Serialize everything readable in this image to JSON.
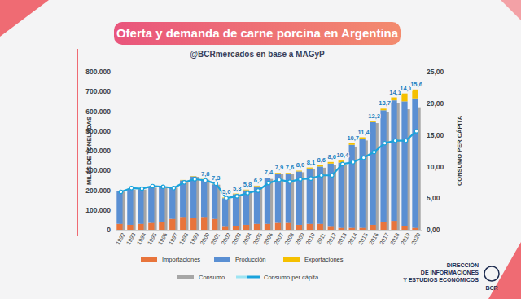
{
  "chart_data": {
    "type": "bar",
    "title": "Oferta y demanda de carne porcina en Argentina",
    "subtitle": "@BCRmercados en base a MAGyP",
    "y_label": "MILES DE TONELADAS",
    "y2_label": "CONSUMO PER CÁPITA",
    "annotations": [
      "DIRECCIÓN",
      "DE INFORMACIONES",
      "Y ESTUDIOS ECONÓMICOS",
      "BCR"
    ],
    "stacked": true,
    "grid": false,
    "legend": "bottom",
    "data_labels": true,
    "categories": [
      "1992",
      "1993",
      "1994",
      "1995",
      "1996",
      "1997",
      "1998",
      "1999",
      "2000",
      "2001",
      "2002",
      "2003",
      "2004",
      "2005",
      "2006",
      "2007",
      "2008",
      "2009",
      "2010",
      "2011",
      "2012",
      "2013",
      "2014",
      "2015",
      "2016",
      "2017",
      "2018",
      "2019",
      "2020"
    ],
    "ylim": [
      0,
      800000
    ],
    "yticks": [
      0,
      {
        "value": 100000,
        "label": "100.000"
      },
      {
        "value": 200000,
        "label": "200.000"
      },
      {
        "value": 300000,
        "label": "300.000"
      },
      {
        "value": 400000,
        "label": "400.000"
      },
      {
        "value": 500000,
        "label": "500.000"
      },
      {
        "value": 600000,
        "label": "600.000"
      },
      {
        "value": 700000,
        "label": "700.000"
      },
      {
        "value": 800000,
        "label": "800.000"
      }
    ],
    "y2lim": [
      0,
      25
    ],
    "y2ticks": [
      {
        "value": 0,
        "label": "0,00"
      },
      {
        "value": 5,
        "label": "5,00"
      },
      {
        "value": 10,
        "label": "10,00"
      },
      {
        "value": 15,
        "label": "15,00"
      },
      {
        "value": 20,
        "label": "20,00"
      },
      {
        "value": 25,
        "label": "25,00"
      }
    ],
    "series": [
      {
        "name": "Importaciones",
        "color": "#e8743b",
        "values": [
          30000,
          25000,
          30000,
          35000,
          40000,
          55000,
          65000,
          60000,
          65000,
          55000,
          15000,
          20000,
          25000,
          30000,
          30000,
          35000,
          35000,
          25000,
          30000,
          30000,
          15000,
          10000,
          10000,
          10000,
          25000,
          40000,
          45000,
          20000,
          10000
        ]
      },
      {
        "name": "Producción",
        "color": "#5a8fd3",
        "values": [
          165000,
          180000,
          175000,
          180000,
          175000,
          160000,
          185000,
          210000,
          190000,
          175000,
          145000,
          160000,
          175000,
          190000,
          230000,
          250000,
          250000,
          270000,
          280000,
          290000,
          320000,
          330000,
          420000,
          450000,
          520000,
          565000,
          610000,
          630000,
          655000
        ]
      },
      {
        "name": "Exportaciones",
        "color": "#f5c000",
        "values": [
          2000,
          2000,
          2000,
          2000,
          2000,
          2000,
          2000,
          2000,
          2000,
          2000,
          3000,
          3000,
          3000,
          3000,
          3000,
          3000,
          3000,
          4000,
          5000,
          6000,
          8000,
          10000,
          9000,
          8000,
          5000,
          8000,
          15000,
          40000,
          45000
        ]
      },
      {
        "name": "Consumo",
        "color": "#a6a6a6",
        "type": "overlay",
        "values": [
          193000,
          203000,
          203000,
          213000,
          213000,
          213000,
          248000,
          268000,
          253000,
          228000,
          157000,
          177000,
          197000,
          217000,
          257000,
          282000,
          282000,
          291000,
          305000,
          314000,
          327000,
          330000,
          421000,
          452000,
          540000,
          597000,
          640000,
          610000,
          620000
        ]
      },
      {
        "name": "Consumo per cápita",
        "color": "#1aa3dc",
        "type": "line",
        "axis": "y2",
        "marker": "circle",
        "values": [
          6.0,
          6.6,
          6.5,
          6.9,
          6.8,
          6.6,
          7.5,
          8.0,
          7.8,
          7.3,
          5.0,
          5.3,
          5.8,
          6.2,
          7.4,
          7.9,
          7.6,
          8.0,
          8.1,
          8.6,
          8.6,
          10.4,
          10.7,
          11.4,
          12.3,
          13.7,
          14.1,
          14.1,
          15.6
        ],
        "value_labels": [
          null,
          null,
          null,
          null,
          null,
          null,
          null,
          null,
          "7,8",
          "7,3",
          "5,0",
          "5,3",
          "5,8",
          "6,2",
          "7,4",
          "7,9",
          "7,6",
          "8,0",
          "8,1",
          "8,6",
          "8,6",
          "10,4",
          "10,7",
          "11,4",
          "12,3",
          "13,7",
          "14,1",
          "14,1",
          "15,6"
        ]
      }
    ]
  }
}
